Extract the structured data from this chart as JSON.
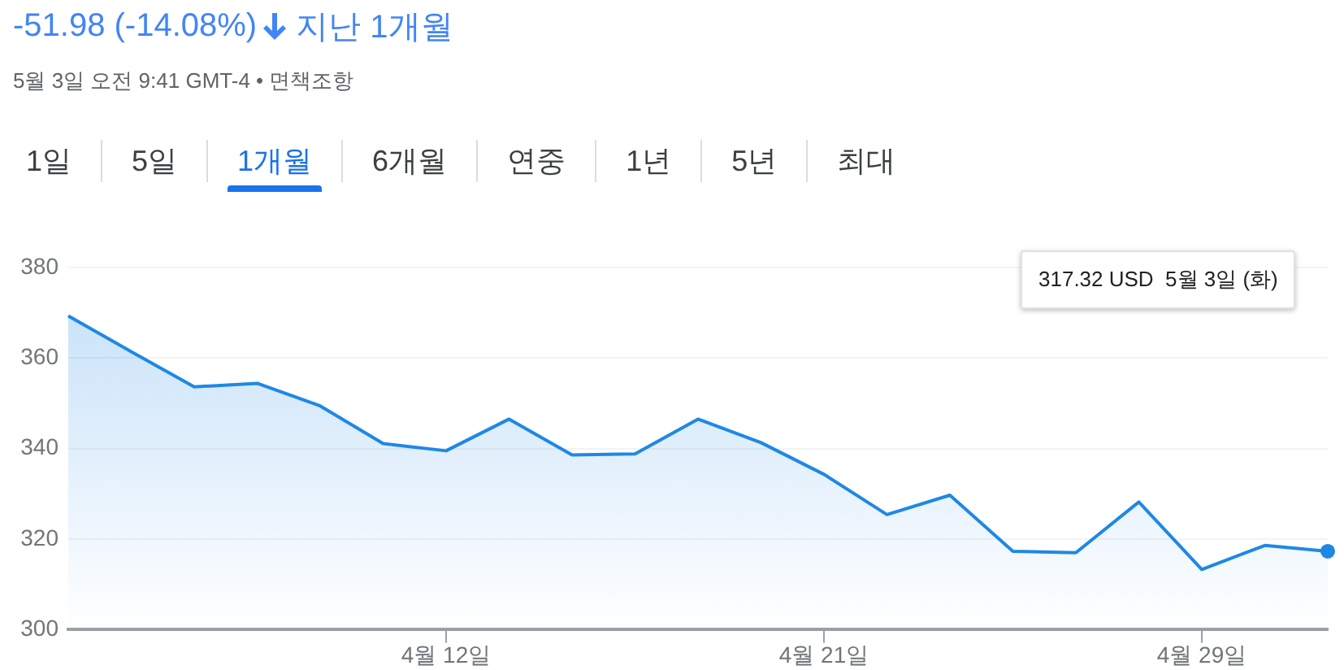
{
  "chart_data": {
    "type": "area",
    "title": "-51.98 (-14.08%)",
    "subtitle": "지난 1개월",
    "annotations": [
      "5월 3일 오전 9:41 GMT-4 • 면책조항",
      "317.32 USD  5월 3일 (화)",
      "1일",
      "5일",
      "1개월",
      "6개월",
      "연중",
      "1년",
      "5년",
      "최대"
    ],
    "categories": [
      null,
      null,
      null,
      null,
      null,
      null,
      "4월 12일",
      null,
      null,
      null,
      null,
      null,
      "4월 21일",
      null,
      null,
      null,
      null,
      null,
      "4월 29일",
      null,
      null
    ],
    "series": [
      {
        "color": "#1e88e5",
        "values": [
          369.3,
          361.4,
          353.6,
          354.4,
          349.4,
          341.1,
          339.5,
          346.5,
          338.6,
          338.8,
          346.5,
          341.3,
          334.3,
          325.4,
          329.7,
          317.3,
          317.0,
          328.2,
          313.3,
          318.6,
          317.32
        ]
      }
    ],
    "ylim": [
      300,
      380
    ],
    "yticks": [
      300,
      320,
      340,
      360,
      380
    ],
    "grid": "y",
    "legend": false,
    "marker": "none",
    "line_style": "solid"
  }
}
